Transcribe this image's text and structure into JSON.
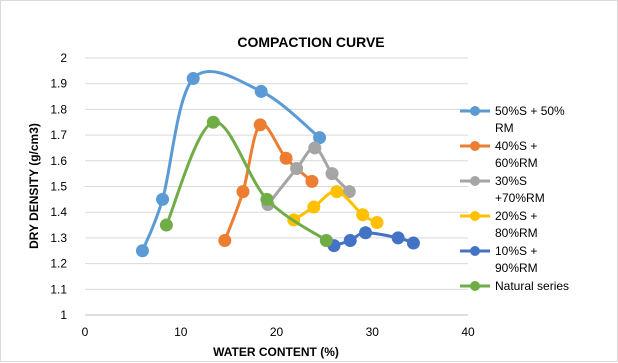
{
  "chart_data": {
    "type": "scatter",
    "title": "COMPACTION CURVE",
    "xlabel": "WATER CONTENT (%)",
    "ylabel": "DRY DENSITY (g/cm3)",
    "xlim": [
      0,
      40
    ],
    "ylim": [
      1,
      2
    ],
    "xticks": [
      0,
      10,
      20,
      30,
      40
    ],
    "yticks": [
      1,
      1.1,
      1.2,
      1.3,
      1.4,
      1.5,
      1.6,
      1.7,
      1.8,
      1.9,
      2
    ],
    "grid": "horizontal",
    "legend_position": "right",
    "series": [
      {
        "name": "50%S + 50% RM",
        "legend_lines": [
          "50%S + 50%",
          "RM"
        ],
        "color": "#5B9BD5",
        "x": [
          6.0,
          8.1,
          11.3,
          18.4,
          24.5
        ],
        "y": [
          1.25,
          1.45,
          1.92,
          1.87,
          1.69
        ]
      },
      {
        "name": "40%S + 60%RM",
        "legend_lines": [
          "40%S +",
          "60%RM"
        ],
        "color": "#ED7D31",
        "x": [
          14.6,
          16.5,
          18.3,
          21.0,
          23.7
        ],
        "y": [
          1.29,
          1.48,
          1.74,
          1.61,
          1.52
        ]
      },
      {
        "name": "30%S +70%RM",
        "legend_lines": [
          "30%S",
          "+70%RM"
        ],
        "color": "#A5A5A5",
        "x": [
          19.1,
          22.1,
          24.0,
          25.8,
          27.6
        ],
        "y": [
          1.43,
          1.57,
          1.65,
          1.55,
          1.48
        ]
      },
      {
        "name": "20%S + 80%RM",
        "legend_lines": [
          "20%S +",
          "80%RM"
        ],
        "color": "#FFC000",
        "x": [
          21.8,
          23.9,
          26.3,
          29.0,
          30.5
        ],
        "y": [
          1.37,
          1.42,
          1.48,
          1.39,
          1.36
        ]
      },
      {
        "name": "10%S + 90%RM",
        "legend_lines": [
          "10%S +",
          "90%RM"
        ],
        "color": "#4472C4",
        "x": [
          26.0,
          27.7,
          29.3,
          32.7,
          34.3
        ],
        "y": [
          1.27,
          1.29,
          1.32,
          1.3,
          1.28
        ]
      },
      {
        "name": "Natural series",
        "legend_lines": [
          "Natural series"
        ],
        "color": "#70AD47",
        "x": [
          8.5,
          13.4,
          19.0,
          25.2
        ],
        "y": [
          1.35,
          1.75,
          1.45,
          1.29
        ]
      }
    ]
  }
}
